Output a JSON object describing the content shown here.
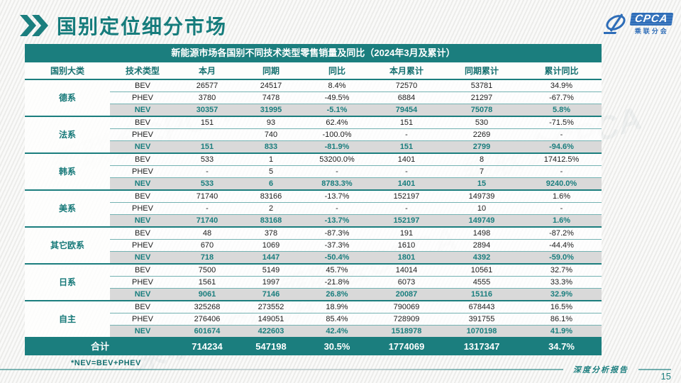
{
  "page": {
    "title": "国别定位细分市场",
    "footer_note": "*NEV=BEV+PHEV",
    "footer_label": "深度分析报告",
    "page_number": "15"
  },
  "logo": {
    "brand": "CPCA",
    "sub": "乘联分会"
  },
  "colors": {
    "accent_teal": "#1b7e7e",
    "nev_row_bg": "#d9d9d9",
    "logo_blue": "#2e6db8"
  },
  "watermark_text": "乘联会CPCA",
  "table": {
    "title": "新能源市场各国别不同技术类型零售销量及同比（2024年3月及累计）",
    "headers": [
      "国别大类",
      "技术类型",
      "本月",
      "同期",
      "同比",
      "本月累计",
      "同期累计",
      "累计同比"
    ],
    "groups": [
      {
        "name": "德系",
        "rows": [
          [
            "BEV",
            "26577",
            "24517",
            "8.4%",
            "72570",
            "53781",
            "34.9%"
          ],
          [
            "PHEV",
            "3780",
            "7478",
            "-49.5%",
            "6884",
            "21297",
            "-67.7%"
          ],
          [
            "NEV",
            "30357",
            "31995",
            "-5.1%",
            "79454",
            "75078",
            "5.8%"
          ]
        ]
      },
      {
        "name": "法系",
        "rows": [
          [
            "BEV",
            "151",
            "93",
            "62.4%",
            "151",
            "530",
            "-71.5%"
          ],
          [
            "PHEV",
            "",
            "740",
            "-100.0%",
            "-",
            "2269",
            "-"
          ],
          [
            "NEV",
            "151",
            "833",
            "-81.9%",
            "151",
            "2799",
            "-94.6%"
          ]
        ]
      },
      {
        "name": "韩系",
        "rows": [
          [
            "BEV",
            "533",
            "1",
            "53200.0%",
            "1401",
            "8",
            "17412.5%"
          ],
          [
            "PHEV",
            "-",
            "5",
            "-",
            "-",
            "7",
            "-"
          ],
          [
            "NEV",
            "533",
            "6",
            "8783.3%",
            "1401",
            "15",
            "9240.0%"
          ]
        ]
      },
      {
        "name": "美系",
        "rows": [
          [
            "BEV",
            "71740",
            "83166",
            "-13.7%",
            "152197",
            "149739",
            "1.6%"
          ],
          [
            "PHEV",
            "-",
            "2",
            "-",
            "-",
            "10",
            "-"
          ],
          [
            "NEV",
            "71740",
            "83168",
            "-13.7%",
            "152197",
            "149749",
            "1.6%"
          ]
        ]
      },
      {
        "name": "其它欧系",
        "rows": [
          [
            "BEV",
            "48",
            "378",
            "-87.3%",
            "191",
            "1498",
            "-87.2%"
          ],
          [
            "PHEV",
            "670",
            "1069",
            "-37.3%",
            "1610",
            "2894",
            "-44.4%"
          ],
          [
            "NEV",
            "718",
            "1447",
            "-50.4%",
            "1801",
            "4392",
            "-59.0%"
          ]
        ]
      },
      {
        "name": "日系",
        "rows": [
          [
            "BEV",
            "7500",
            "5149",
            "45.7%",
            "14014",
            "10561",
            "32.7%"
          ],
          [
            "PHEV",
            "1561",
            "1997",
            "-21.8%",
            "6073",
            "4555",
            "33.3%"
          ],
          [
            "NEV",
            "9061",
            "7146",
            "26.8%",
            "20087",
            "15116",
            "32.9%"
          ]
        ]
      },
      {
        "name": "自主",
        "rows": [
          [
            "BEV",
            "325268",
            "273552",
            "18.9%",
            "790069",
            "678443",
            "16.5%"
          ],
          [
            "PHEV",
            "276406",
            "149051",
            "85.4%",
            "728909",
            "391755",
            "86.1%"
          ],
          [
            "NEV",
            "601674",
            "422603",
            "42.4%",
            "1518978",
            "1070198",
            "41.9%"
          ]
        ]
      }
    ],
    "total": {
      "label": "合计",
      "values": [
        "714234",
        "547198",
        "30.5%",
        "1774069",
        "1317347",
        "34.7%"
      ]
    }
  }
}
